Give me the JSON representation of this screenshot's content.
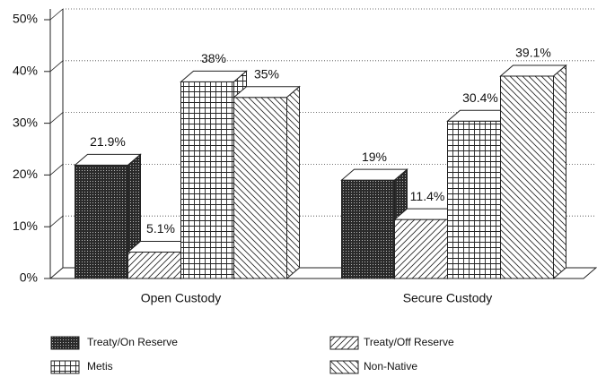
{
  "chart_data": {
    "type": "bar3d",
    "categories": [
      "Open Custody",
      "Secure Custody"
    ],
    "series": [
      {
        "name": "Treaty/On Reserve",
        "color": "#222222",
        "pattern": "dots",
        "values": [
          21.9,
          19
        ],
        "value_labels": [
          "21.9%",
          "19%"
        ]
      },
      {
        "name": "Treaty/Off Reserve",
        "color": "#222222",
        "pattern": "forward-diagonal",
        "values": [
          5.1,
          11.4
        ],
        "value_labels": [
          "5.1%",
          "11.4%"
        ]
      },
      {
        "name": "Metis",
        "color": "#222222",
        "pattern": "grid",
        "values": [
          38,
          30.4
        ],
        "value_labels": [
          "38%",
          "30.4%"
        ]
      },
      {
        "name": "Non-Native",
        "color": "#222222",
        "pattern": "back-diagonal",
        "values": [
          35,
          39.1
        ],
        "value_labels": [
          "35%",
          "39.1%"
        ]
      }
    ],
    "ylim": [
      0,
      50
    ],
    "yticks": [
      {
        "value": 0,
        "label": "0%"
      },
      {
        "value": 10,
        "label": "10%"
      },
      {
        "value": 20,
        "label": "20%"
      },
      {
        "value": 30,
        "label": "30%"
      },
      {
        "value": 40,
        "label": "40%"
      },
      {
        "value": 50,
        "label": "50%"
      }
    ],
    "grid": true,
    "legend": "bottom"
  }
}
